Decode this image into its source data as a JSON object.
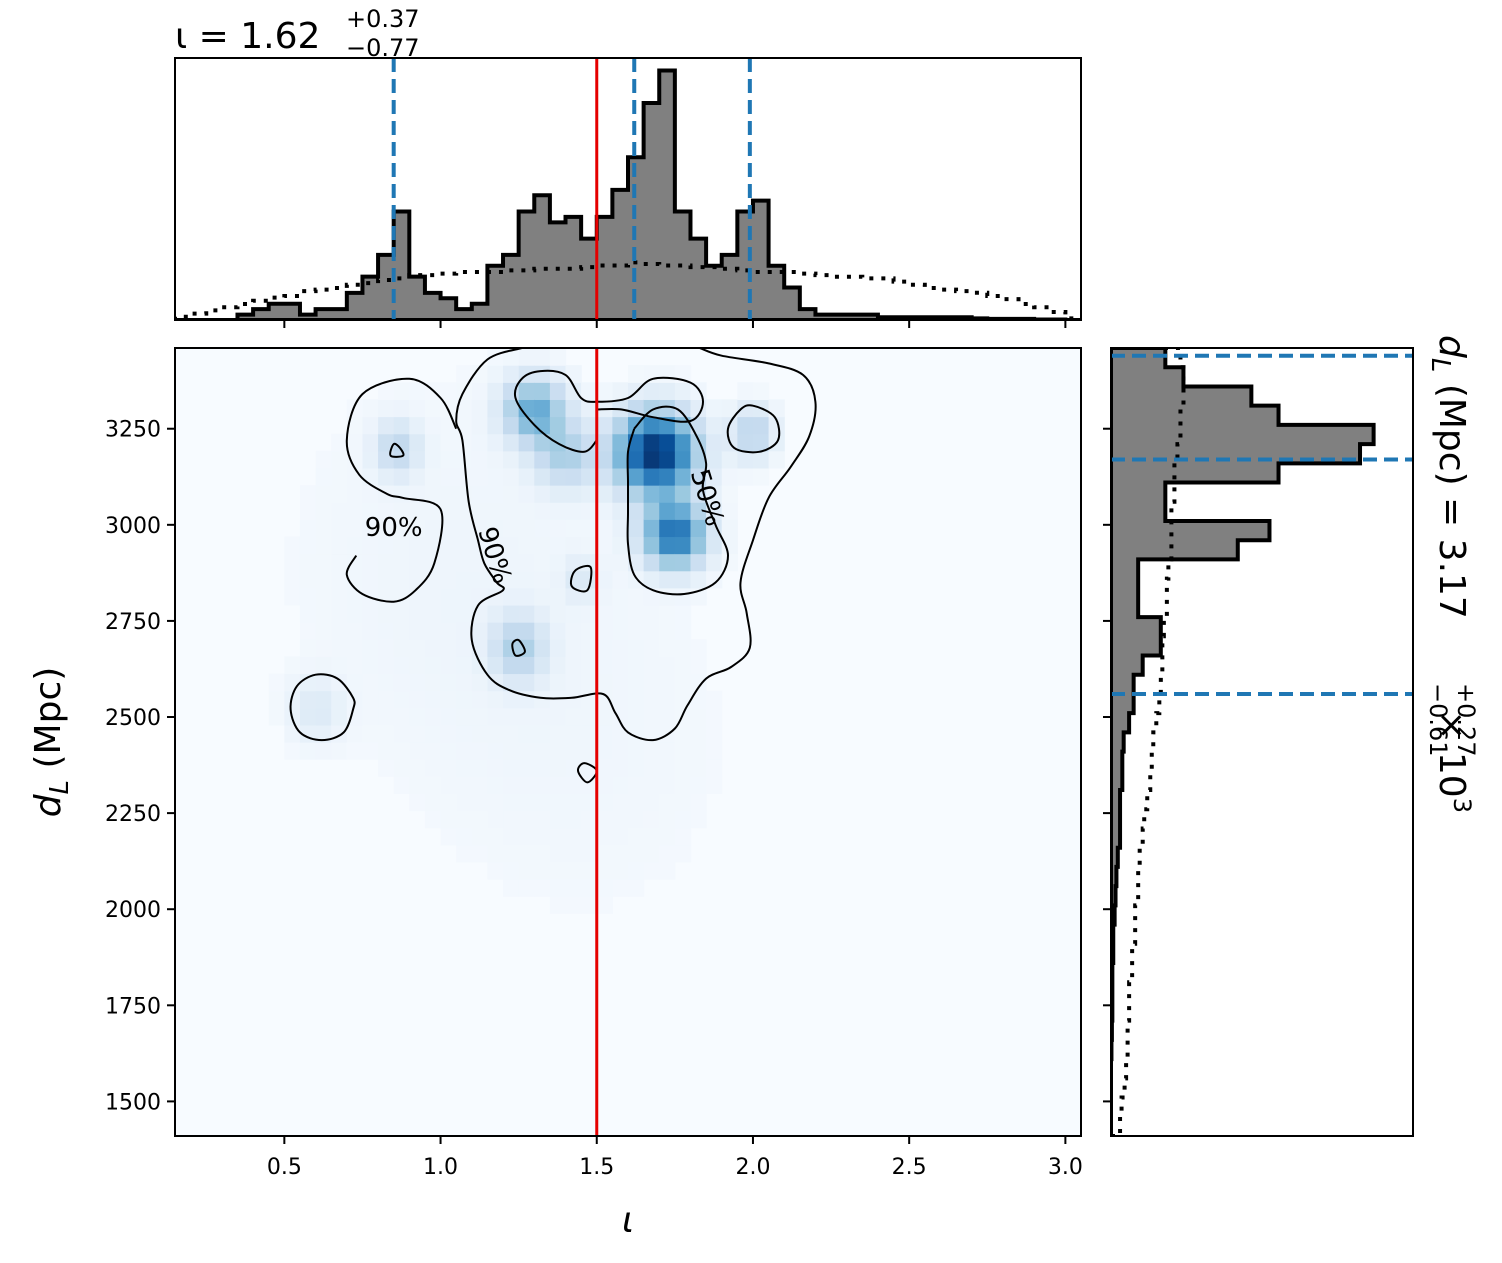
{
  "chart_data": {
    "type": "corner-plot",
    "top_title": {
      "param": "ι",
      "median": "1.62",
      "plus": "+0.37",
      "minus": "−0.77"
    },
    "right_title": {
      "param_main": "d",
      "param_sub": "L",
      "unit": "(Mpc)",
      "median": "3.17",
      "plus": "+0.27",
      "minus": "−0.61",
      "scale": "× 10",
      "scale_exp": "3"
    },
    "xlabel": "ι",
    "ylabel_main": "d",
    "ylabel_sub": "L",
    "ylabel_unit": "(Mpc)",
    "xlim": [
      0.15,
      3.05
    ],
    "ylim": [
      1410,
      3460
    ],
    "xticks": [
      "0.5",
      "1.0",
      "1.5",
      "2.0",
      "2.5",
      "3.0"
    ],
    "yticks": [
      "1500",
      "1750",
      "2000",
      "2250",
      "2500",
      "2750",
      "3000",
      "3250"
    ],
    "truth_iota": 1.5,
    "iota_quantiles": [
      0.85,
      1.62,
      1.99
    ],
    "dl_quantiles": [
      2560,
      3170,
      3440
    ],
    "contour_labels": [
      "90%",
      "90%",
      "50%"
    ],
    "colors": {
      "hist_fill": "#808080",
      "quantile_line": "#1f77b4",
      "truth_line": "#e50000",
      "density_dark": "#08306b",
      "density_light": "#f7fbff"
    },
    "iota_posterior_hist": {
      "edges": [
        0.15,
        0.2,
        0.25,
        0.3,
        0.35,
        0.4,
        0.45,
        0.5,
        0.55,
        0.6,
        0.65,
        0.7,
        0.75,
        0.8,
        0.85,
        0.9,
        0.95,
        1.0,
        1.05,
        1.1,
        1.15,
        1.2,
        1.25,
        1.3,
        1.35,
        1.4,
        1.45,
        1.5,
        1.55,
        1.6,
        1.65,
        1.7,
        1.75,
        1.8,
        1.85,
        1.9,
        1.95,
        2.0,
        2.05,
        2.1,
        2.15,
        2.2,
        2.25,
        2.3,
        2.35,
        2.4,
        2.45,
        2.5,
        2.55,
        2.6,
        2.65,
        2.7,
        2.75,
        2.8,
        2.85,
        2.9,
        2.95,
        3.0,
        3.05
      ],
      "counts": [
        0,
        0,
        0,
        0,
        1,
        2,
        3,
        3,
        1,
        2,
        2,
        5,
        8,
        12,
        20,
        8,
        5,
        4,
        2,
        3,
        10,
        12,
        20,
        23,
        18,
        19,
        15,
        19,
        24,
        30,
        40,
        46,
        20,
        15,
        10,
        12,
        20,
        22,
        10,
        6,
        2,
        1,
        1,
        1,
        1,
        0.5,
        0.5,
        0.5,
        0.5,
        0.5,
        0.5,
        0.3,
        0.2,
        0.2,
        0.2,
        0.1,
        0.1,
        0
      ]
    },
    "iota_prior_hist": {
      "edges": [
        0.15,
        0.2,
        0.25,
        0.3,
        0.35,
        0.4,
        0.45,
        0.5,
        0.55,
        0.6,
        0.65,
        0.7,
        0.75,
        0.8,
        0.85,
        0.9,
        0.95,
        1.0,
        1.05,
        1.1,
        1.15,
        1.2,
        1.25,
        1.3,
        1.35,
        1.4,
        1.45,
        1.5,
        1.55,
        1.6,
        1.65,
        1.7,
        1.75,
        1.8,
        1.85,
        1.9,
        1.95,
        2.0,
        2.05,
        2.1,
        2.15,
        2.2,
        2.25,
        2.3,
        2.35,
        2.4,
        2.45,
        2.5,
        2.55,
        2.6,
        2.65,
        2.7,
        2.75,
        2.8,
        2.85,
        2.9,
        2.95,
        3.0,
        3.05
      ],
      "counts": [
        1,
        2,
        3,
        4,
        5,
        6,
        7,
        7.5,
        9,
        9.5,
        10,
        11,
        11.5,
        12.5,
        13,
        14,
        14,
        14.5,
        15,
        15,
        15,
        15.5,
        15.5,
        16,
        16,
        16,
        16.5,
        17,
        17,
        18,
        17.5,
        17,
        17,
        16.5,
        16.5,
        16,
        15.5,
        15,
        15,
        15,
        14.5,
        14,
        13.5,
        13.5,
        13,
        13,
        12,
        11,
        10,
        9.5,
        9,
        8.5,
        7.5,
        6.5,
        5,
        4,
        2.5,
        0.5
      ]
    },
    "dl_posterior_hist": {
      "edges": [
        1410,
        1460,
        1510,
        1560,
        1610,
        1660,
        1710,
        1760,
        1810,
        1860,
        1910,
        1960,
        2010,
        2060,
        2110,
        2160,
        2210,
        2260,
        2310,
        2360,
        2410,
        2460,
        2510,
        2560,
        2610,
        2660,
        2710,
        2760,
        2810,
        2860,
        2910,
        2960,
        3010,
        3060,
        3110,
        3160,
        3210,
        3260,
        3310,
        3360,
        3410,
        3460
      ],
      "counts": [
        0,
        0,
        0,
        0,
        0.1,
        0.2,
        0.3,
        0.3,
        0.3,
        0.5,
        0.5,
        0.8,
        1,
        1.2,
        1.5,
        2,
        2,
        2,
        2.5,
        2.5,
        2.8,
        4,
        5,
        5,
        7,
        11,
        11,
        6,
        6,
        6,
        28,
        35,
        12,
        12,
        37,
        55,
        58,
        37,
        31,
        16,
        12
      ]
    },
    "dl_prior_hist": {
      "edges": [
        1410,
        1460,
        1510,
        1560,
        1610,
        1660,
        1710,
        1760,
        1810,
        1860,
        1910,
        1960,
        2010,
        2060,
        2110,
        2160,
        2210,
        2260,
        2310,
        2360,
        2410,
        2460,
        2510,
        2560,
        2610,
        2660,
        2710,
        2760,
        2810,
        2860,
        2910,
        2960,
        3010,
        3060,
        3110,
        3160,
        3210,
        3260,
        3310,
        3360,
        3410,
        3460
      ],
      "counts": [
        3,
        3.5,
        4.5,
        5,
        5.5,
        5.5,
        6,
        6,
        7,
        7,
        8,
        8,
        9,
        9,
        9.5,
        10.5,
        11,
        12,
        13,
        13.5,
        14,
        15,
        16,
        16.5,
        17,
        17,
        17.5,
        18.5,
        18.5,
        19,
        20,
        20,
        20,
        21,
        21,
        22,
        23,
        23,
        24,
        24,
        23
      ]
    },
    "density_peaks": [
      {
        "iota": 1.69,
        "dl": 3190,
        "sigma_iota": 0.09,
        "sigma_dl": 75,
        "weight": 1.0
      },
      {
        "iota": 1.75,
        "dl": 2975,
        "sigma_iota": 0.07,
        "sigma_dl": 60,
        "weight": 0.75
      },
      {
        "iota": 1.3,
        "dl": 3300,
        "sigma_iota": 0.07,
        "sigma_dl": 60,
        "weight": 0.5
      },
      {
        "iota": 1.4,
        "dl": 3180,
        "sigma_iota": 0.07,
        "sigma_dl": 60,
        "weight": 0.3
      },
      {
        "iota": 1.25,
        "dl": 2680,
        "sigma_iota": 0.06,
        "sigma_dl": 60,
        "weight": 0.3
      },
      {
        "iota": 2.0,
        "dl": 3240,
        "sigma_iota": 0.05,
        "sigma_dl": 50,
        "weight": 0.3
      },
      {
        "iota": 0.86,
        "dl": 3200,
        "sigma_iota": 0.05,
        "sigma_dl": 50,
        "weight": 0.25
      },
      {
        "iota": 0.6,
        "dl": 2520,
        "sigma_iota": 0.06,
        "sigma_dl": 60,
        "weight": 0.12
      },
      {
        "iota": 1.45,
        "dl": 2860,
        "sigma_iota": 0.04,
        "sigma_dl": 40,
        "weight": 0.12
      },
      {
        "iota": 1.0,
        "dl": 2900,
        "sigma_iota": 0.4,
        "sigma_dl": 400,
        "weight": 0.04
      },
      {
        "iota": 1.5,
        "dl": 2400,
        "sigma_iota": 0.4,
        "sigma_dl": 400,
        "weight": 0.03
      }
    ],
    "contours_90": [
      [
        [
          1.26,
          3460
        ],
        [
          1.15,
          3430
        ],
        [
          1.07,
          3340
        ],
        [
          1.05,
          3270
        ],
        [
          1.07,
          3220
        ],
        [
          1.09,
          3060
        ],
        [
          1.12,
          2960
        ],
        [
          1.14,
          2900
        ],
        [
          1.18,
          2850
        ],
        [
          1.2,
          2830
        ],
        [
          1.12,
          2790
        ],
        [
          1.1,
          2700
        ],
        [
          1.15,
          2610
        ],
        [
          1.22,
          2570
        ],
        [
          1.32,
          2550
        ],
        [
          1.42,
          2550
        ],
        [
          1.52,
          2560
        ],
        [
          1.56,
          2510
        ],
        [
          1.6,
          2460
        ],
        [
          1.68,
          2440
        ],
        [
          1.75,
          2470
        ],
        [
          1.79,
          2530
        ],
        [
          1.85,
          2600
        ],
        [
          1.93,
          2630
        ],
        [
          1.99,
          2680
        ],
        [
          1.98,
          2770
        ],
        [
          1.96,
          2850
        ],
        [
          2.0,
          2960
        ],
        [
          2.05,
          3070
        ],
        [
          2.12,
          3150
        ],
        [
          2.18,
          3230
        ],
        [
          2.2,
          3320
        ],
        [
          2.16,
          3390
        ],
        [
          2.05,
          3420
        ],
        [
          1.9,
          3440
        ],
        [
          1.83,
          3460
        ]
      ],
      [
        [
          1.05,
          3250
        ],
        [
          1.0,
          3330
        ],
        [
          0.9,
          3380
        ],
        [
          0.75,
          3340
        ],
        [
          0.7,
          3220
        ],
        [
          0.74,
          3130
        ],
        [
          0.83,
          3080
        ],
        [
          0.88,
          3070
        ],
        [
          1.0,
          3040
        ],
        [
          0.98,
          2900
        ],
        [
          0.92,
          2830
        ],
        [
          0.85,
          2800
        ],
        [
          0.75,
          2820
        ],
        [
          0.7,
          2870
        ],
        [
          0.73,
          2920
        ]
      ],
      [
        [
          0.72,
          2550
        ],
        [
          0.67,
          2600
        ],
        [
          0.6,
          2610
        ],
        [
          0.54,
          2580
        ],
        [
          0.52,
          2520
        ],
        [
          0.55,
          2460
        ],
        [
          0.62,
          2440
        ],
        [
          0.69,
          2460
        ],
        [
          0.72,
          2520
        ],
        [
          0.72,
          2550
        ]
      ],
      [
        [
          0.85,
          3210
        ],
        [
          0.87,
          3200
        ],
        [
          0.88,
          3180
        ],
        [
          0.84,
          3180
        ],
        [
          0.85,
          3210
        ]
      ],
      [
        [
          1.25,
          2700
        ],
        [
          1.27,
          2670
        ],
        [
          1.24,
          2660
        ],
        [
          1.23,
          2690
        ],
        [
          1.25,
          2700
        ]
      ],
      [
        [
          1.43,
          2880
        ],
        [
          1.48,
          2890
        ],
        [
          1.47,
          2830
        ],
        [
          1.42,
          2840
        ],
        [
          1.43,
          2880
        ]
      ],
      [
        [
          1.46,
          2380
        ],
        [
          1.5,
          2360
        ],
        [
          1.47,
          2330
        ],
        [
          1.44,
          2360
        ],
        [
          1.46,
          2380
        ]
      ],
      [
        [
          2.0,
          3310
        ],
        [
          2.07,
          3280
        ],
        [
          2.08,
          3220
        ],
        [
          2.02,
          3190
        ],
        [
          1.94,
          3200
        ],
        [
          1.92,
          3250
        ],
        [
          1.96,
          3300
        ],
        [
          2.0,
          3310
        ]
      ]
    ],
    "contours_50": [
      [
        [
          1.5,
          3220
        ],
        [
          1.46,
          3190
        ],
        [
          1.38,
          3210
        ],
        [
          1.3,
          3260
        ],
        [
          1.24,
          3330
        ],
        [
          1.26,
          3380
        ],
        [
          1.32,
          3400
        ],
        [
          1.4,
          3390
        ],
        [
          1.45,
          3330
        ],
        [
          1.5,
          3320
        ],
        [
          1.6,
          3330
        ],
        [
          1.68,
          3380
        ],
        [
          1.8,
          3370
        ],
        [
          1.84,
          3320
        ],
        [
          1.8,
          3270
        ],
        [
          1.68,
          3280
        ],
        [
          1.58,
          3300
        ],
        [
          1.5,
          3300
        ]
      ],
      [
        [
          1.62,
          3250
        ],
        [
          1.68,
          3300
        ],
        [
          1.76,
          3300
        ],
        [
          1.82,
          3230
        ],
        [
          1.85,
          3160
        ],
        [
          1.84,
          3090
        ],
        [
          1.88,
          3000
        ],
        [
          1.92,
          2920
        ],
        [
          1.88,
          2850
        ],
        [
          1.78,
          2820
        ],
        [
          1.68,
          2830
        ],
        [
          1.62,
          2870
        ],
        [
          1.6,
          2950
        ],
        [
          1.6,
          3030
        ],
        [
          1.6,
          3110
        ],
        [
          1.6,
          3190
        ],
        [
          1.62,
          3250
        ]
      ]
    ]
  }
}
